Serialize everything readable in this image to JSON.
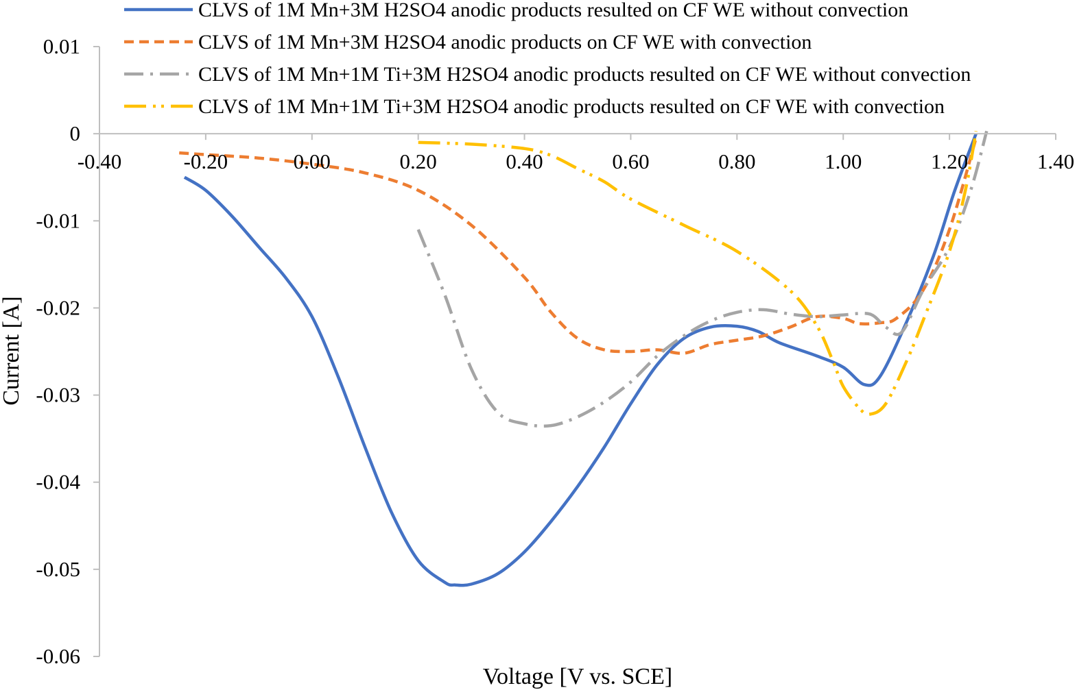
{
  "chart_data": {
    "type": "line",
    "title": "",
    "xlabel": "Voltage [V vs. SCE]",
    "ylabel": "Current [A]",
    "xlim": [
      -0.4,
      1.4
    ],
    "ylim": [
      -0.06,
      0.01
    ],
    "x_ticks": [
      -0.4,
      -0.2,
      0.0,
      0.2,
      0.4,
      0.6,
      0.8,
      1.0,
      1.2,
      1.4
    ],
    "x_tick_labels": [
      "-0.40",
      "-0.20",
      "0.00",
      "0.20",
      "0.40",
      "0.60",
      "0.80",
      "1.00",
      "1.20",
      "1.40"
    ],
    "y_ticks": [
      0.01,
      0,
      -0.01,
      -0.02,
      -0.03,
      -0.04,
      -0.05,
      -0.06
    ],
    "y_tick_labels": [
      "0.01",
      "0",
      "-0.01",
      "-0.02",
      "-0.03",
      "-0.04",
      "-0.05",
      "-0.06"
    ],
    "grid": false,
    "legend_position": "top-right",
    "series": [
      {
        "name": "CLVS of 1M Mn+3M H2SO4 anodic products resulted on CF WE without convection",
        "color": "#4472C4",
        "dash": "solid",
        "points": [
          [
            -0.24,
            -0.005
          ],
          [
            -0.2,
            -0.0065
          ],
          [
            -0.15,
            -0.0095
          ],
          [
            -0.1,
            -0.013
          ],
          [
            -0.05,
            -0.0165
          ],
          [
            0.0,
            -0.021
          ],
          [
            0.05,
            -0.028
          ],
          [
            0.1,
            -0.036
          ],
          [
            0.15,
            -0.0435
          ],
          [
            0.2,
            -0.049
          ],
          [
            0.25,
            -0.0515
          ],
          [
            0.27,
            -0.0518
          ],
          [
            0.3,
            -0.0517
          ],
          [
            0.35,
            -0.0505
          ],
          [
            0.4,
            -0.048
          ],
          [
            0.45,
            -0.0445
          ],
          [
            0.5,
            -0.0405
          ],
          [
            0.55,
            -0.036
          ],
          [
            0.6,
            -0.031
          ],
          [
            0.65,
            -0.0265
          ],
          [
            0.7,
            -0.0235
          ],
          [
            0.75,
            -0.0222
          ],
          [
            0.8,
            -0.0221
          ],
          [
            0.84,
            -0.0227
          ],
          [
            0.88,
            -0.024
          ],
          [
            0.95,
            -0.0255
          ],
          [
            1.0,
            -0.0268
          ],
          [
            1.04,
            -0.0288
          ],
          [
            1.07,
            -0.0278
          ],
          [
            1.12,
            -0.0215
          ],
          [
            1.17,
            -0.014
          ],
          [
            1.21,
            -0.0065
          ],
          [
            1.25,
            0.0
          ]
        ]
      },
      {
        "name": "CLVS of 1M Mn+3M H2SO4 anodic products on CF WE with convection",
        "color": "#ED7D31",
        "dash": "dashed",
        "points": [
          [
            -0.25,
            -0.0022
          ],
          [
            -0.2,
            -0.0024
          ],
          [
            -0.1,
            -0.0028
          ],
          [
            0.0,
            -0.0035
          ],
          [
            0.1,
            -0.0045
          ],
          [
            0.2,
            -0.0065
          ],
          [
            0.3,
            -0.0105
          ],
          [
            0.4,
            -0.0165
          ],
          [
            0.45,
            -0.0205
          ],
          [
            0.5,
            -0.0235
          ],
          [
            0.55,
            -0.0248
          ],
          [
            0.6,
            -0.025
          ],
          [
            0.65,
            -0.0248
          ],
          [
            0.7,
            -0.0252
          ],
          [
            0.75,
            -0.0242
          ],
          [
            0.8,
            -0.0237
          ],
          [
            0.85,
            -0.0232
          ],
          [
            0.9,
            -0.0222
          ],
          [
            0.95,
            -0.021
          ],
          [
            1.0,
            -0.0212
          ],
          [
            1.03,
            -0.0218
          ],
          [
            1.07,
            -0.0217
          ],
          [
            1.1,
            -0.0212
          ],
          [
            1.15,
            -0.018
          ],
          [
            1.2,
            -0.011
          ],
          [
            1.25,
            -0.0005
          ]
        ]
      },
      {
        "name": "CLVS of 1M Mn+1M Ti+3M H2SO4 anodic products resulted on CF WE without convection",
        "color": "#A5A5A5",
        "dash": "dashdot",
        "points": [
          [
            0.2,
            -0.011
          ],
          [
            0.25,
            -0.0185
          ],
          [
            0.3,
            -0.027
          ],
          [
            0.35,
            -0.032
          ],
          [
            0.4,
            -0.0333
          ],
          [
            0.45,
            -0.0335
          ],
          [
            0.5,
            -0.0325
          ],
          [
            0.55,
            -0.0308
          ],
          [
            0.6,
            -0.0285
          ],
          [
            0.65,
            -0.0255
          ],
          [
            0.7,
            -0.0232
          ],
          [
            0.75,
            -0.0215
          ],
          [
            0.8,
            -0.0205
          ],
          [
            0.85,
            -0.0202
          ],
          [
            0.9,
            -0.0207
          ],
          [
            0.95,
            -0.021
          ],
          [
            1.0,
            -0.0208
          ],
          [
            1.05,
            -0.0207
          ],
          [
            1.08,
            -0.0222
          ],
          [
            1.11,
            -0.0228
          ],
          [
            1.15,
            -0.018
          ],
          [
            1.2,
            -0.013
          ],
          [
            1.24,
            -0.0065
          ],
          [
            1.27,
            0.0003
          ]
        ]
      },
      {
        "name": "CLVS of 1M Mn+1M Ti+3M H2SO4 anodic products resulted on CF WE with convection",
        "color": "#FFC000",
        "dash": "longdashdotdot",
        "points": [
          [
            0.2,
            -0.001
          ],
          [
            0.3,
            -0.0012
          ],
          [
            0.4,
            -0.0017
          ],
          [
            0.45,
            -0.0025
          ],
          [
            0.5,
            -0.004
          ],
          [
            0.55,
            -0.0055
          ],
          [
            0.6,
            -0.0075
          ],
          [
            0.7,
            -0.0105
          ],
          [
            0.8,
            -0.0135
          ],
          [
            0.9,
            -0.018
          ],
          [
            0.95,
            -0.022
          ],
          [
            0.98,
            -0.026
          ],
          [
            1.0,
            -0.029
          ],
          [
            1.03,
            -0.0315
          ],
          [
            1.05,
            -0.0322
          ],
          [
            1.08,
            -0.031
          ],
          [
            1.12,
            -0.026
          ],
          [
            1.15,
            -0.0215
          ],
          [
            1.2,
            -0.0135
          ],
          [
            1.23,
            -0.0065
          ],
          [
            1.25,
            0.0003
          ]
        ]
      }
    ]
  }
}
